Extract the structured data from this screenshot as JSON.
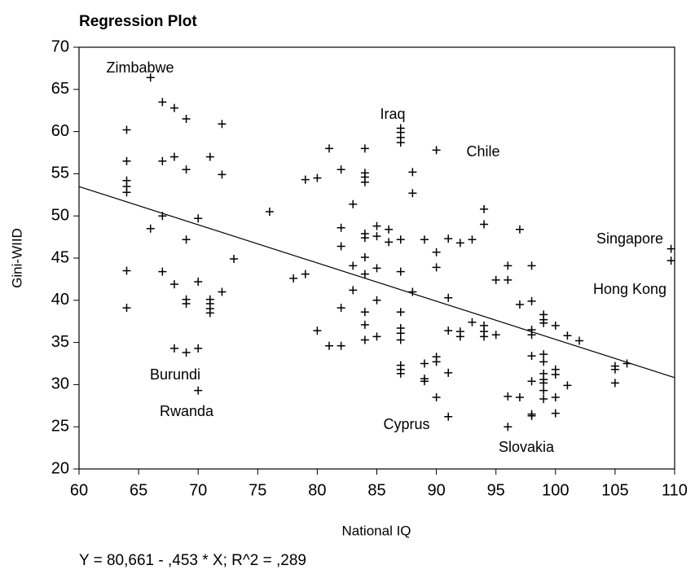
{
  "chart_data": {
    "type": "scatter",
    "title": "Regression Plot",
    "x_label": "National IQ",
    "y_label": "Gini-WIID",
    "equation": "Y = 80,661 - ,453 * X; R^2 = ,289",
    "regression": {
      "intercept": 80.661,
      "slope": -0.453
    },
    "color": "#000000",
    "xlim": [
      60,
      110
    ],
    "xticks": [
      60,
      65,
      70,
      75,
      80,
      85,
      90,
      95,
      100,
      105,
      110
    ],
    "ylim": [
      20,
      70
    ],
    "yticks": [
      20,
      25,
      30,
      35,
      40,
      45,
      50,
      55,
      60,
      65,
      70
    ],
    "annotations": [
      "Zimbabwe",
      "Iraq",
      "Chile",
      "Singapore",
      "Hong Kong",
      "Burundi",
      "Rwanda",
      "Cyprus",
      "Slovakia"
    ],
    "x": [
      64,
      64,
      64,
      64,
      64,
      64,
      64,
      66,
      66,
      67,
      67,
      67,
      67,
      68,
      68,
      68,
      68,
      69,
      69,
      69,
      69,
      69,
      69,
      70,
      70,
      70,
      70,
      71,
      71,
      71,
      71,
      71,
      72,
      72,
      72,
      73,
      76,
      78,
      79,
      79,
      80,
      80,
      81,
      81,
      82,
      82,
      82,
      82,
      82,
      83,
      83,
      83,
      84,
      84,
      84,
      84,
      84,
      84,
      84,
      84,
      84,
      84,
      84,
      85,
      85,
      85,
      85,
      85,
      86,
      86,
      87,
      87,
      87,
      87,
      87,
      87,
      87,
      87,
      87,
      87,
      87,
      87,
      87,
      88,
      88,
      88,
      89,
      89,
      89,
      89,
      90,
      90,
      90,
      90,
      90,
      90,
      91,
      91,
      91,
      91,
      91,
      92,
      92,
      92,
      93,
      93,
      94,
      94,
      94,
      94,
      94,
      95,
      95,
      96,
      96,
      96,
      96,
      97,
      97,
      97,
      98,
      98,
      98,
      98,
      98,
      98,
      98,
      98,
      99,
      99,
      99,
      99,
      99,
      99,
      99,
      99,
      99,
      99,
      100,
      100,
      100,
      100,
      100,
      101,
      101,
      102,
      105,
      105,
      105,
      106,
      109.7,
      109.7
    ],
    "values": [
      60.2,
      56.5,
      54.2,
      53.5,
      52.8,
      43.5,
      39.1,
      66.4,
      48.5,
      63.5,
      56.5,
      50.0,
      43.4,
      62.8,
      57.0,
      41.9,
      34.3,
      61.5,
      55.5,
      47.2,
      40.1,
      39.6,
      33.8,
      49.7,
      42.2,
      34.3,
      29.3,
      57.0,
      40.1,
      39.6,
      39.0,
      38.5,
      60.9,
      54.9,
      41.0,
      44.9,
      50.5,
      42.6,
      54.3,
      43.1,
      54.5,
      36.4,
      58.0,
      34.6,
      55.5,
      48.6,
      46.4,
      39.1,
      34.6,
      51.4,
      44.1,
      41.2,
      58.0,
      55.1,
      54.6,
      54.0,
      47.9,
      47.4,
      45.1,
      43.1,
      38.6,
      37.1,
      35.3,
      48.8,
      47.6,
      43.8,
      40.0,
      35.7,
      48.4,
      46.9,
      60.4,
      59.9,
      59.3,
      58.7,
      47.2,
      43.4,
      38.6,
      36.7,
      36.1,
      35.3,
      32.3,
      31.8,
      31.3,
      55.2,
      52.7,
      41.0,
      47.2,
      32.5,
      30.7,
      30.4,
      57.8,
      45.7,
      43.9,
      33.3,
      32.7,
      28.5,
      47.3,
      40.3,
      36.4,
      31.4,
      26.2,
      46.8,
      36.3,
      35.7,
      47.2,
      37.4,
      50.8,
      49.0,
      37.0,
      36.3,
      35.7,
      42.4,
      35.9,
      44.1,
      42.4,
      28.6,
      25.0,
      48.4,
      39.5,
      28.5,
      44.1,
      39.9,
      36.5,
      35.9,
      33.4,
      30.4,
      26.5,
      26.3,
      38.3,
      37.7,
      37.3,
      33.6,
      32.7,
      31.3,
      30.6,
      30.2,
      29.3,
      28.3,
      37.0,
      31.8,
      31.2,
      28.5,
      26.6,
      35.8,
      29.9,
      35.2,
      32.2,
      31.8,
      30.2,
      32.5,
      46.1,
      44.7
    ]
  }
}
